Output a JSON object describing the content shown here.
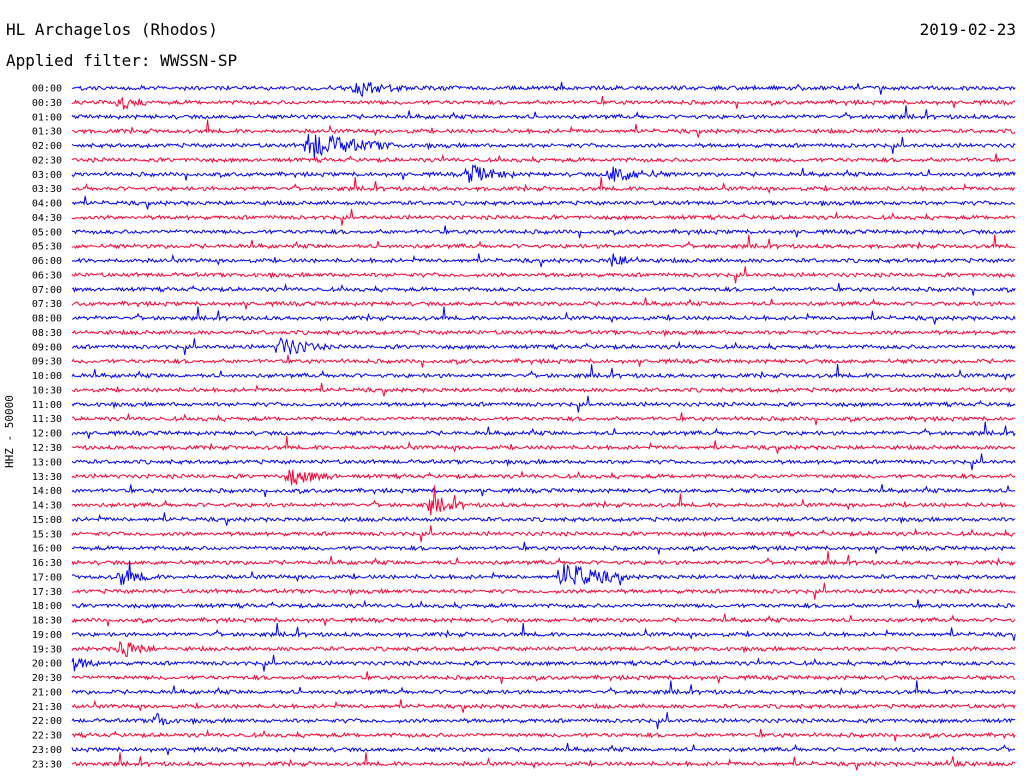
{
  "header": {
    "title": "HL Archagelos (Rhodos)",
    "date": "2019-02-23",
    "filter": "Applied filter: WWSSN-SP"
  },
  "chart_data": {
    "type": "line",
    "station": "HL Archagelos (Rhodos)",
    "date": "2019-02-23",
    "filter": "WWSSN-SP",
    "ylabel": "HHZ - 50000",
    "row_labels": [
      "00:00",
      "00:30",
      "01:00",
      "01:30",
      "02:00",
      "02:30",
      "03:00",
      "03:30",
      "04:00",
      "04:30",
      "05:00",
      "05:30",
      "06:00",
      "06:30",
      "07:00",
      "07:30",
      "08:00",
      "08:30",
      "09:00",
      "09:30",
      "10:00",
      "10:30",
      "11:00",
      "11:30",
      "12:00",
      "12:30",
      "13:00",
      "13:30",
      "14:00",
      "14:30",
      "15:00",
      "15:30",
      "16:00",
      "16:30",
      "17:00",
      "17:30",
      "18:00",
      "18:30",
      "19:00",
      "19:30",
      "20:00",
      "20:30",
      "21:00",
      "21:30",
      "22:00",
      "22:30",
      "23:00",
      "23:30"
    ],
    "row_colors": [
      "#0000ff",
      "#ff0033"
    ],
    "x_range_minutes": [
      0,
      30
    ],
    "events": [
      {
        "row": 0,
        "x": 0.3,
        "amp": 1.6,
        "dur": 0.05
      },
      {
        "row": 1,
        "x": 0.05,
        "amp": 1.3,
        "dur": 0.03
      },
      {
        "row": 4,
        "x": 0.25,
        "amp": 2.4,
        "dur": 0.09
      },
      {
        "row": 6,
        "x": 0.42,
        "amp": 1.6,
        "dur": 0.05
      },
      {
        "row": 6,
        "x": 0.57,
        "amp": 1.5,
        "dur": 0.06
      },
      {
        "row": 12,
        "x": 0.57,
        "amp": 1.2,
        "dur": 0.04
      },
      {
        "row": 18,
        "x": 0.22,
        "amp": 1.8,
        "dur": 0.05
      },
      {
        "row": 27,
        "x": 0.23,
        "amp": 1.5,
        "dur": 0.05
      },
      {
        "row": 29,
        "x": 0.38,
        "amp": 1.7,
        "dur": 0.04
      },
      {
        "row": 34,
        "x": 0.05,
        "amp": 1.5,
        "dur": 0.04
      },
      {
        "row": 34,
        "x": 0.52,
        "amp": 2.6,
        "dur": 0.07
      },
      {
        "row": 39,
        "x": 0.05,
        "amp": 1.7,
        "dur": 0.04
      },
      {
        "row": 40,
        "x": 0.0,
        "amp": 1.3,
        "dur": 0.03
      },
      {
        "row": 44,
        "x": 0.09,
        "amp": 1.3,
        "dur": 0.02
      },
      {
        "row": 47,
        "x": 0.93,
        "amp": 1.4,
        "dur": 0.02
      }
    ]
  }
}
